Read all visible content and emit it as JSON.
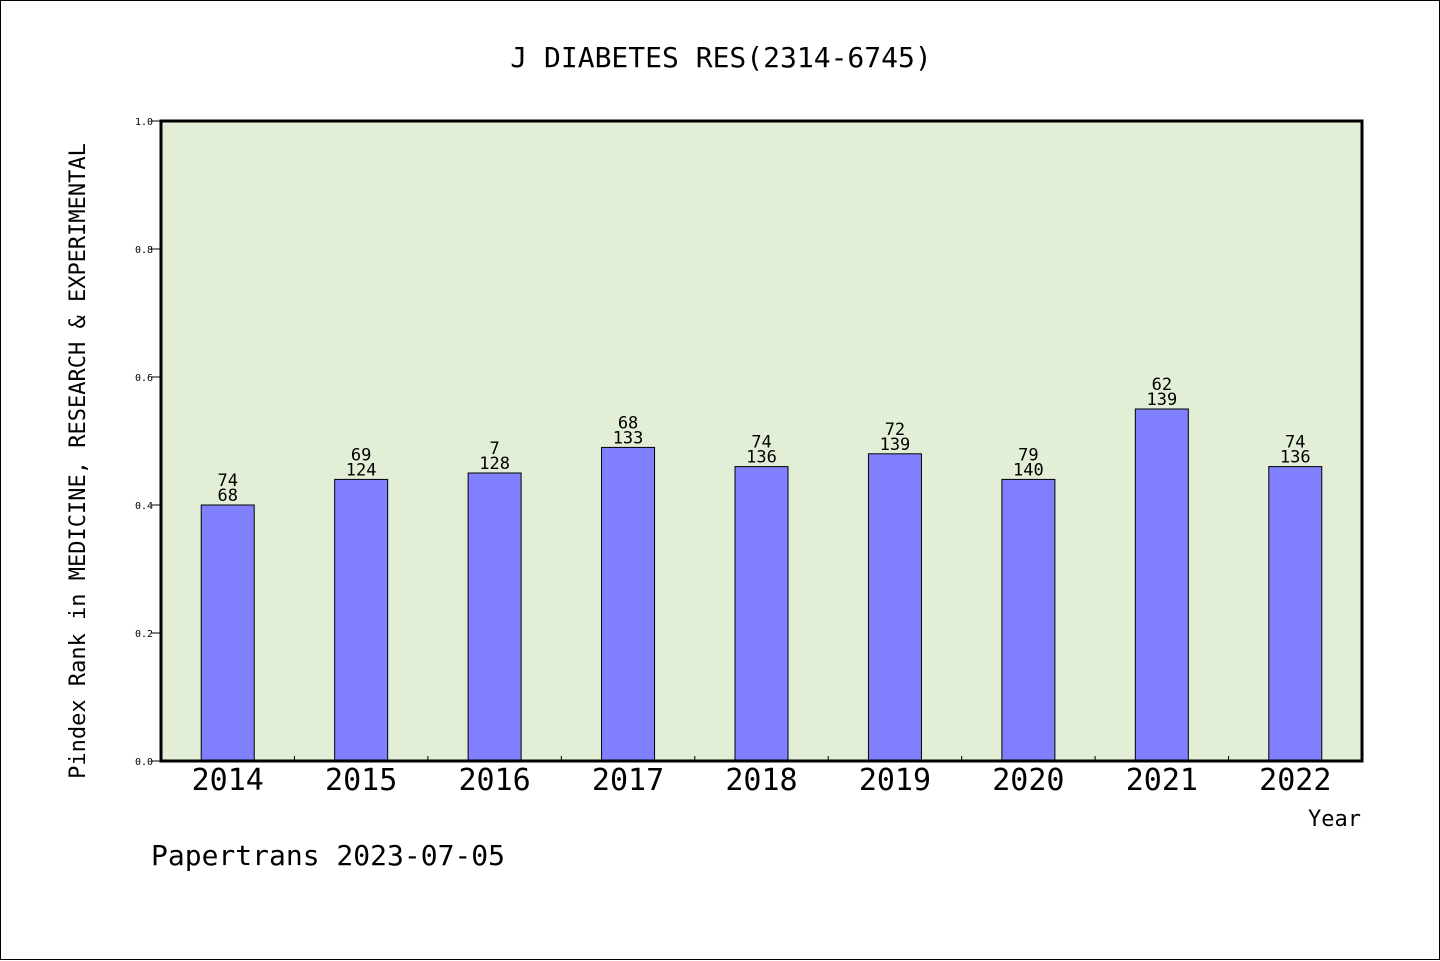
{
  "colors": {
    "plot_background": "#e2efd6",
    "bar_fill": "#8080ff",
    "bar_stroke": "#000000",
    "axis": "#000000"
  },
  "chart_data": {
    "type": "bar",
    "title": "J DIABETES RES(2314-6745)",
    "xlabel": "Year",
    "ylabel": "Pindex Rank in MEDICINE, RESEARCH & EXPERIMENTAL",
    "ylim": [
      0,
      1.0
    ],
    "yticks": [
      "0.0",
      "0.2",
      "0.4",
      "0.6",
      "0.8",
      "1.0"
    ],
    "grid": false,
    "categories": [
      "2014",
      "2015",
      "2016",
      "2017",
      "2018",
      "2019",
      "2020",
      "2021",
      "2022"
    ],
    "values": [
      0.4,
      0.44,
      0.45,
      0.49,
      0.46,
      0.48,
      0.44,
      0.55,
      0.46
    ],
    "labels_top": [
      "74",
      "69",
      "7",
      "68",
      "74",
      "72",
      "79",
      "62",
      "74"
    ],
    "labels_bottom": [
      "68",
      "124",
      "128",
      "133",
      "136",
      "139",
      "140",
      "139",
      "136"
    ]
  },
  "footer": "Papertrans 2023-07-05"
}
